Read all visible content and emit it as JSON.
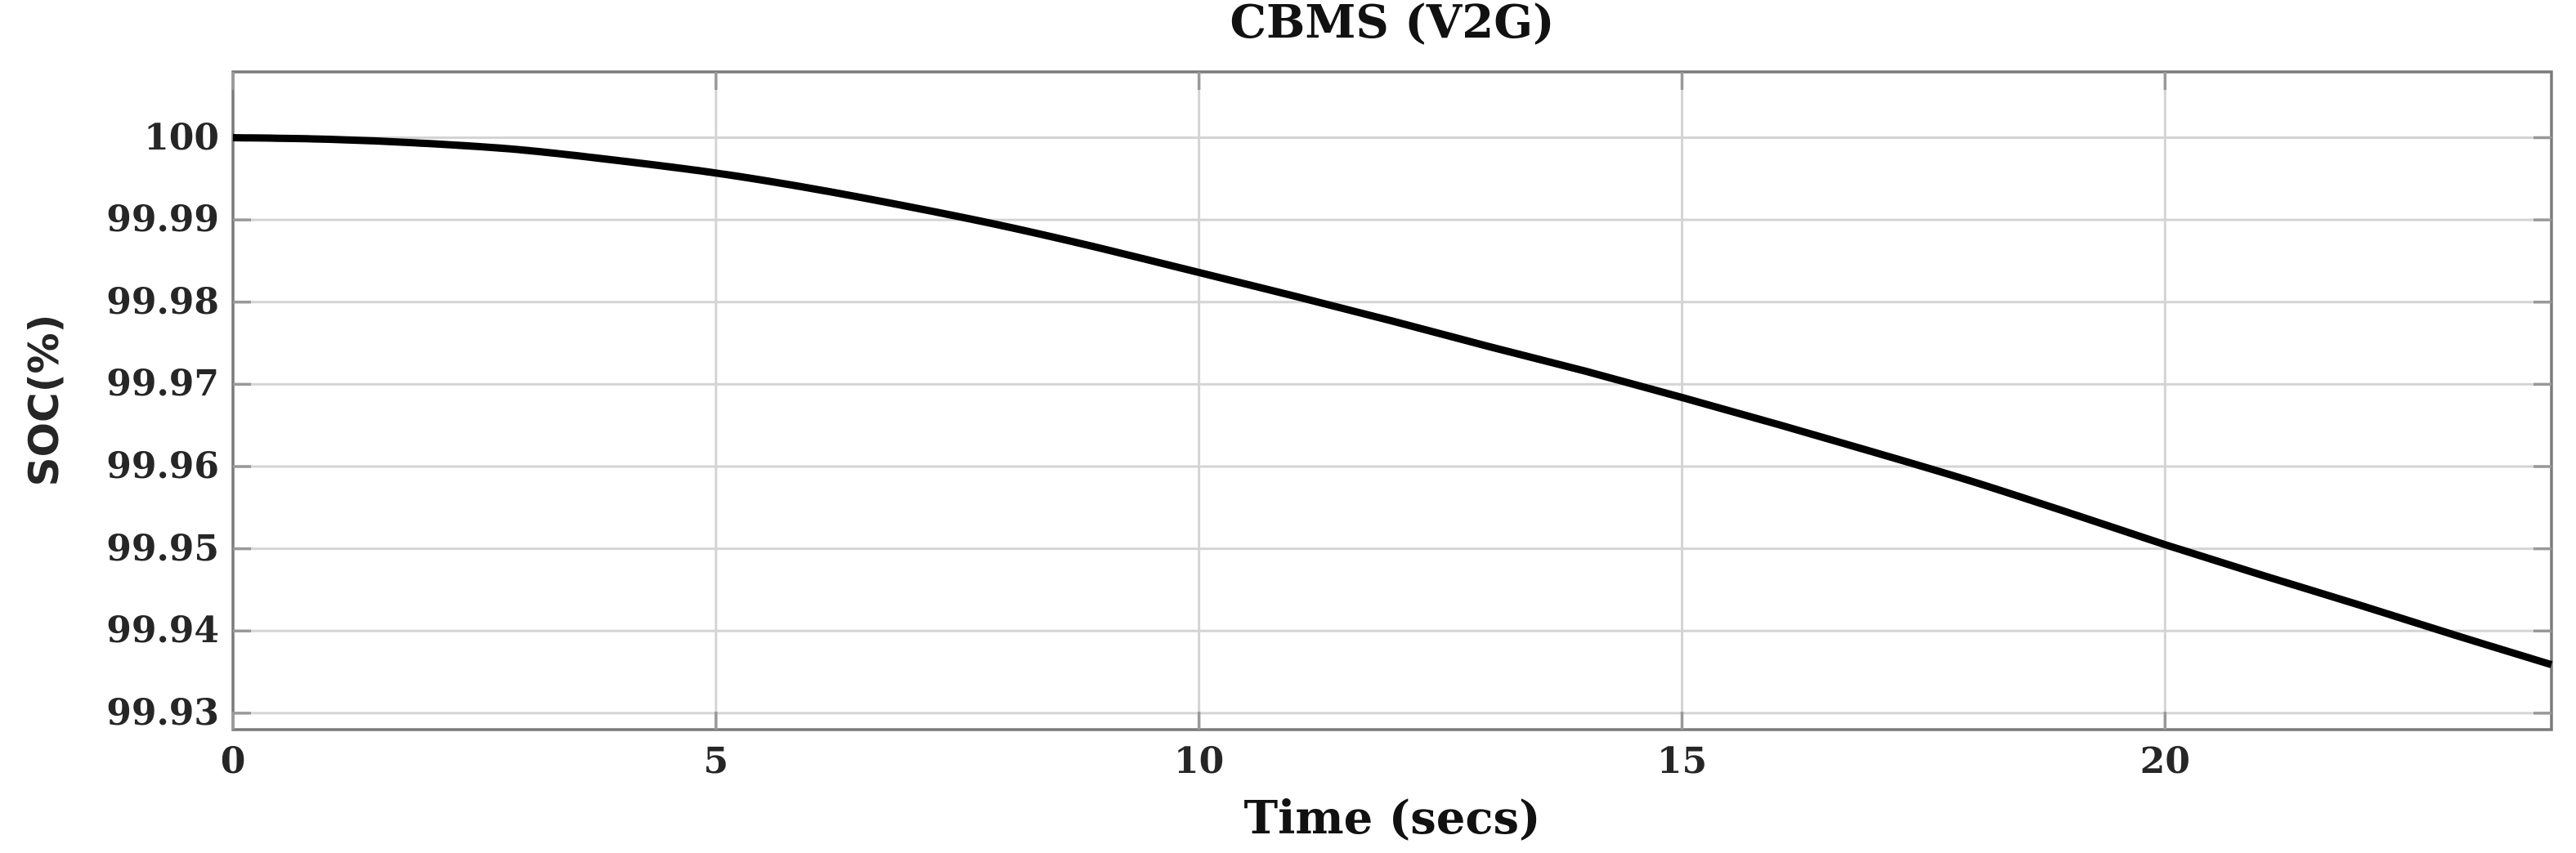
{
  "chart_data": {
    "type": "line",
    "title": "CBMS (V2G)",
    "xlabel": "Time (secs)",
    "ylabel": "SOC(%)",
    "x": [
      0,
      1,
      2,
      3,
      4,
      5,
      6,
      7,
      8,
      9,
      10,
      11,
      12,
      13,
      14,
      15,
      16,
      17,
      18,
      19,
      20,
      21,
      22,
      23,
      24
    ],
    "y": [
      100.0,
      99.9998,
      99.9993,
      99.9985,
      99.9972,
      99.9957,
      99.9938,
      99.9916,
      99.9892,
      99.9865,
      99.9836,
      99.9807,
      99.9777,
      99.9746,
      99.9716,
      99.9684,
      99.9651,
      99.9617,
      99.9582,
      99.9544,
      99.9505,
      99.9468,
      99.9432,
      99.9395,
      99.9359
    ],
    "xlim": [
      0,
      24
    ],
    "ylim": [
      99.928,
      100.008
    ],
    "xticks": [
      0,
      5,
      10,
      15,
      20
    ],
    "xtick_labels": [
      "0",
      "5",
      "10",
      "15",
      "20"
    ],
    "yticks": [
      100,
      99.99,
      99.98,
      99.97,
      99.96,
      99.95,
      99.94,
      99.93
    ],
    "ytick_labels": [
      "100",
      "99.99",
      "99.98",
      "99.97",
      "99.96",
      "99.95",
      "99.94",
      "99.93"
    ],
    "grid": true,
    "legend": "none",
    "colors": {
      "line": "#000000",
      "grid": "#d4d4d4",
      "axis_box": "#7a7a7a",
      "tick": "#999999",
      "text": "#262626",
      "background": "#ffffff"
    }
  }
}
